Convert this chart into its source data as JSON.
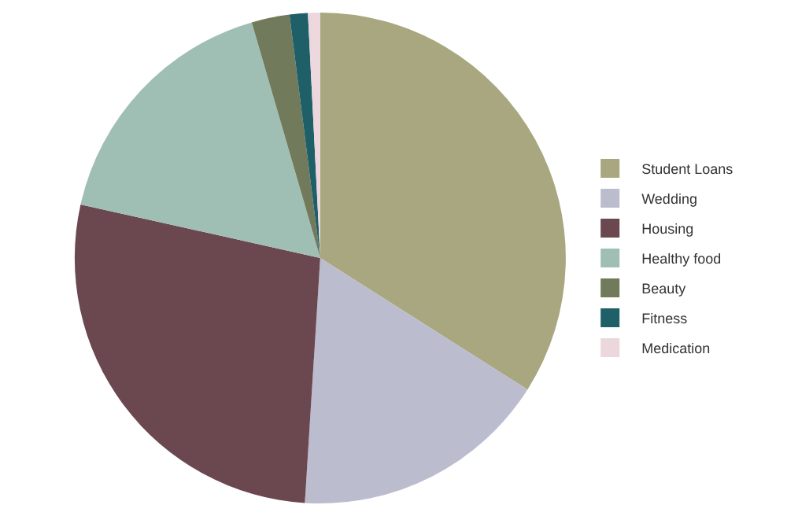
{
  "chart_data": {
    "type": "pie",
    "categories": [
      "Student Loans",
      "Wedding",
      "Housing",
      "Healthy food",
      "Beauty",
      "Fitness",
      "Medication"
    ],
    "values": [
      34,
      17,
      27.5,
      17,
      2.5,
      1.2,
      0.8
    ],
    "colors": [
      "#a8a77f",
      "#bcbccf",
      "#6b4750",
      "#a0bfb4",
      "#717a5a",
      "#1f5f68",
      "#ecd7dd"
    ],
    "legend": "right"
  }
}
